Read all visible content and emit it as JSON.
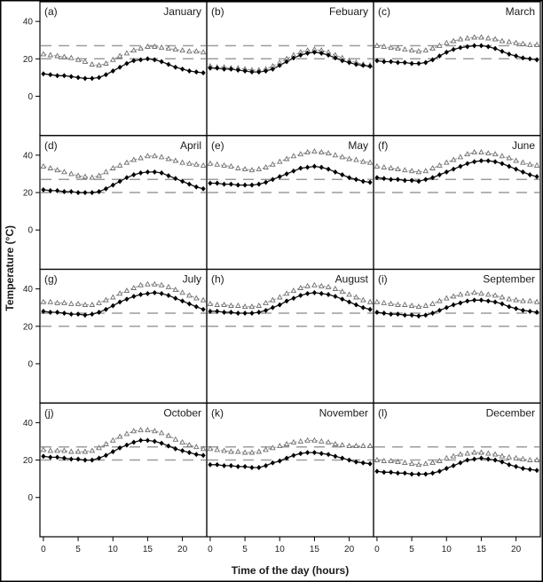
{
  "chart_data": {
    "type": "line",
    "title": "",
    "xlabel": "Time of the day (hours)",
    "ylabel": "Temperature (°C)",
    "x": [
      0,
      1,
      2,
      3,
      4,
      5,
      6,
      7,
      8,
      9,
      10,
      11,
      12,
      13,
      14,
      15,
      16,
      17,
      18,
      19,
      20,
      21,
      22,
      23
    ],
    "xlim": [
      -0.5,
      23.5
    ],
    "ylim": [
      -21,
      50.5
    ],
    "x_ticks": [
      0,
      5,
      10,
      15,
      20
    ],
    "y_ticks": [
      0,
      20,
      40
    ],
    "grid": false,
    "legend_position": "none",
    "reference_lines_y": [
      27,
      20
    ],
    "series_styles": [
      {
        "id": "triangle",
        "marker": "open-triangle",
        "line": "gray-dashed",
        "color": "#8f8f8f"
      },
      {
        "id": "diamond",
        "marker": "filled-diamond",
        "line": "black-solid",
        "color": "#000000"
      }
    ],
    "panels": [
      {
        "label": "(a)",
        "month": "January",
        "triangle": [
          22.5,
          22,
          21.5,
          21,
          20.5,
          19.5,
          18.5,
          17,
          16.5,
          17.5,
          19.5,
          21.5,
          23,
          24.5,
          25.5,
          26.5,
          26.5,
          26,
          25.5,
          25,
          24.5,
          24,
          24,
          23.5
        ],
        "diamond": [
          12,
          11.5,
          11,
          11,
          10.5,
          10,
          9.5,
          9.5,
          10,
          11.5,
          13.5,
          15.5,
          17.5,
          19,
          19.5,
          20,
          19.5,
          18.5,
          17,
          15.5,
          14.5,
          13.5,
          13,
          12.5
        ]
      },
      {
        "label": "(b)",
        "month": "Febuary",
        "triangle": [
          16,
          15.5,
          15.5,
          15,
          15,
          14.5,
          14,
          14,
          14.5,
          16,
          18,
          20,
          22,
          23.5,
          24.5,
          25,
          24.5,
          23.5,
          22,
          20.5,
          19,
          18,
          17,
          16.5
        ],
        "diamond": [
          15,
          15,
          14.5,
          14.5,
          14,
          13.5,
          13,
          13,
          13.5,
          14.5,
          16.5,
          18.5,
          20.5,
          22,
          23,
          23.5,
          23,
          22,
          20.5,
          19,
          18,
          17,
          16.5,
          16
        ]
      },
      {
        "label": "(c)",
        "month": "March",
        "triangle": [
          27,
          26.5,
          26,
          25.5,
          25,
          24.5,
          24,
          24.5,
          25.5,
          27,
          28.5,
          29.5,
          30.5,
          31,
          31.5,
          31.5,
          31,
          30.5,
          29.5,
          29,
          28.5,
          28,
          27.5,
          27.5
        ],
        "diamond": [
          19,
          18.5,
          18.5,
          18,
          18,
          17.5,
          17.5,
          18,
          19.5,
          21.5,
          23.5,
          25,
          26,
          26.5,
          27,
          27,
          26.5,
          25.5,
          24,
          22.5,
          21.5,
          20.5,
          20,
          19.5
        ]
      },
      {
        "label": "(d)",
        "month": "April",
        "triangle": [
          34,
          33,
          32,
          31,
          30,
          29,
          28.5,
          28,
          29,
          31,
          33,
          34.5,
          36,
          37.5,
          38.5,
          39.5,
          39.5,
          39,
          38,
          37,
          36,
          35.5,
          35,
          34.5
        ],
        "diamond": [
          21.5,
          21,
          21,
          20.5,
          20.5,
          20,
          20,
          20,
          20.5,
          22,
          24,
          26,
          28,
          29.5,
          30.5,
          31,
          31,
          30.5,
          29,
          27.5,
          26,
          24.5,
          23,
          22
        ]
      },
      {
        "label": "(e)",
        "month": "May",
        "triangle": [
          35.5,
          35,
          34.5,
          34,
          33,
          32.5,
          32,
          32.5,
          33.5,
          35,
          36.5,
          38,
          39.5,
          40.5,
          41.5,
          42,
          41.5,
          41,
          40,
          39,
          38,
          37.5,
          36.5,
          36
        ],
        "diamond": [
          25,
          25,
          24.5,
          24.5,
          24,
          24,
          24,
          24.5,
          25.5,
          27,
          28.5,
          30,
          31.5,
          33,
          33.5,
          34,
          33.5,
          32.5,
          31,
          29.5,
          28,
          27,
          26,
          25.5
        ]
      },
      {
        "label": "(f)",
        "month": "June",
        "triangle": [
          34,
          33.5,
          33,
          32.5,
          32,
          31.5,
          31,
          31.5,
          33,
          34.5,
          36,
          37.5,
          39,
          40.5,
          41.5,
          41.5,
          41,
          40.5,
          39.5,
          38.5,
          37,
          36,
          35,
          34.5
        ],
        "diamond": [
          28,
          27.5,
          27,
          27,
          26.5,
          26.5,
          26,
          27,
          28,
          29.5,
          31,
          32.5,
          34,
          35.5,
          36.5,
          37,
          37,
          36.5,
          35.5,
          34,
          32.5,
          31,
          29.5,
          28.5
        ]
      },
      {
        "label": "(g)",
        "month": "July",
        "triangle": [
          33,
          33,
          32.5,
          32.5,
          32,
          32,
          31.5,
          31.5,
          32.5,
          34,
          35.5,
          37.5,
          39,
          40.5,
          42,
          42.5,
          42.5,
          42,
          41,
          39.5,
          38,
          36.5,
          35,
          34
        ],
        "diamond": [
          28,
          27.5,
          27.5,
          27,
          26.5,
          26.5,
          26,
          26.5,
          27.5,
          29,
          31,
          33,
          34.5,
          36,
          37,
          37.5,
          38,
          37.5,
          36.5,
          35,
          33.5,
          32,
          30.5,
          29
        ]
      },
      {
        "label": "(h)",
        "month": "August",
        "triangle": [
          32,
          31.5,
          31.5,
          31,
          31,
          30.5,
          30.5,
          31,
          32.5,
          34,
          35.5,
          37.5,
          39,
          40.5,
          41.5,
          42,
          41.5,
          41,
          40,
          38.5,
          37,
          35.5,
          34,
          33
        ],
        "diamond": [
          28,
          28,
          27.5,
          27.5,
          27,
          27,
          27,
          27.5,
          28.5,
          30,
          31.5,
          33.5,
          35,
          36.5,
          37.5,
          38,
          37.5,
          37,
          36,
          34.5,
          33,
          31.5,
          30,
          29
        ]
      },
      {
        "label": "(i)",
        "month": "September",
        "triangle": [
          33,
          32.5,
          32,
          31.5,
          31.5,
          31,
          30.5,
          31,
          32,
          33.5,
          35,
          36,
          37,
          37.5,
          38,
          37.5,
          37,
          36.5,
          35.5,
          34.5,
          34,
          33.5,
          33.5,
          33
        ],
        "diamond": [
          27.5,
          27,
          26.5,
          26.5,
          26,
          26,
          25.5,
          26,
          27,
          28.5,
          30,
          31.5,
          32.5,
          33.5,
          34,
          34,
          33.5,
          33,
          32,
          30.5,
          29.5,
          28.5,
          28,
          27.5
        ]
      },
      {
        "label": "(j)",
        "month": "October",
        "triangle": [
          25.5,
          25,
          25,
          25,
          24.5,
          24.5,
          24.5,
          25,
          26.5,
          28.5,
          30.5,
          32.5,
          34,
          35.5,
          36,
          36,
          35.5,
          34.5,
          33,
          31,
          29.5,
          28,
          27,
          26
        ],
        "diamond": [
          22,
          21.5,
          21.5,
          21,
          20.5,
          20.5,
          20,
          20,
          21,
          22.5,
          24.5,
          26.5,
          28,
          29.5,
          30.5,
          30.5,
          30,
          29,
          27.5,
          26,
          25,
          24,
          23,
          22.5
        ]
      },
      {
        "label": "(k)",
        "month": "November",
        "triangle": [
          26,
          25.5,
          25,
          24.5,
          24.5,
          24,
          24,
          24.5,
          25.5,
          26.5,
          27.5,
          28.5,
          29.5,
          30,
          30.5,
          30.5,
          30,
          29.5,
          28.5,
          28,
          27.5,
          27.5,
          27.5,
          27.5
        ],
        "diamond": [
          17.5,
          17.5,
          17,
          17,
          16.5,
          16.5,
          16,
          16,
          17,
          18.5,
          19.5,
          21,
          22.5,
          23.5,
          24,
          24,
          23.5,
          23,
          22,
          21,
          20,
          19,
          18.5,
          18
        ]
      },
      {
        "label": "(l)",
        "month": "December",
        "triangle": [
          20,
          19.5,
          19.5,
          19,
          18.5,
          18,
          17.5,
          18,
          18.5,
          19.5,
          21,
          22,
          23,
          23.5,
          24,
          24,
          23.5,
          23,
          22,
          21.5,
          21,
          20.5,
          20,
          20
        ],
        "diamond": [
          14,
          13.5,
          13.5,
          13,
          13,
          12.5,
          12.5,
          12.5,
          13,
          14,
          15.5,
          17,
          18.5,
          20,
          20.5,
          21,
          20.5,
          20,
          19,
          17.5,
          16.5,
          15.5,
          15,
          14.5
        ]
      }
    ]
  }
}
